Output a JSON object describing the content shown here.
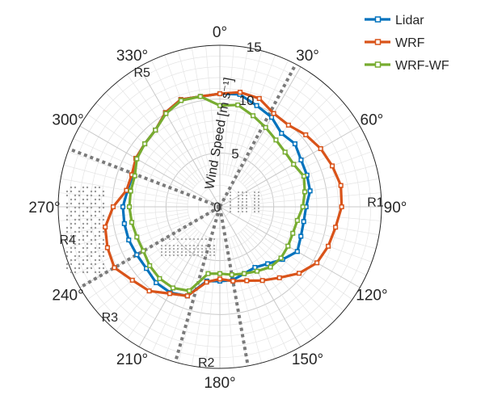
{
  "chart_data": {
    "type": "polar-line",
    "r_axis": {
      "label": "Wind Speed [m s⁻¹]",
      "ticks": [
        "0",
        "5",
        "10",
        "15"
      ],
      "tick_values": [
        0,
        5,
        10,
        15
      ],
      "rlim": [
        0,
        15
      ],
      "minor_step": 1
    },
    "theta_axis": {
      "direction": "clockwise",
      "zero_location": "top",
      "ticks": [
        "0°",
        "30°",
        "60°",
        "90°",
        "120°",
        "150°",
        "180°",
        "210°",
        "240°",
        "270°",
        "300°",
        "330°"
      ],
      "tick_values": [
        0,
        30,
        60,
        90,
        120,
        150,
        180,
        210,
        240,
        270,
        300,
        330
      ]
    },
    "grid": true,
    "legend_position": "top-right",
    "regions": [
      {
        "label": "R1",
        "angle": 88,
        "r": 16.6
      },
      {
        "label": "R2",
        "angle": 185,
        "r": 16.6
      },
      {
        "label": "R3",
        "angle": 225,
        "r": 16.6
      },
      {
        "label": "R4",
        "angle": 258,
        "r": 16.6
      },
      {
        "label": "R5",
        "angle": 330,
        "r": 16.6
      }
    ],
    "sector_boundaries_deg": [
      28,
      170,
      196,
      240,
      291
    ],
    "theta": [
      0,
      10,
      20,
      30,
      40,
      50,
      60,
      70,
      80,
      90,
      100,
      110,
      120,
      130,
      140,
      150,
      160,
      170,
      180,
      190,
      200,
      210,
      220,
      230,
      240,
      250,
      260,
      270,
      280,
      290,
      300,
      310,
      320,
      330,
      340,
      350
    ],
    "series": [
      {
        "name": "Lidar",
        "color": "#0072BD",
        "r": [
          10.5,
          10.6,
          10.0,
          9.6,
          8.9,
          9.1,
          8.7,
          8.6,
          8.5,
          8.0,
          7.9,
          8.0,
          8.3,
          7.6,
          6.9,
          6.5,
          6.6,
          6.9,
          6.9,
          7.0,
          8.8,
          9.2,
          9.2,
          8.9,
          8.9,
          9.0,
          9.0,
          9.0,
          8.7,
          8.6,
          9.0,
          9.1,
          9.3,
          10.1,
          10.6,
          10.4
        ],
        "marker": "square"
      },
      {
        "name": "WRF",
        "color": "#D95319",
        "r": [
          10.5,
          10.8,
          10.7,
          10.0,
          9.9,
          10.4,
          10.8,
          11.1,
          11.4,
          11.3,
          10.9,
          10.7,
          10.4,
          9.6,
          8.6,
          7.9,
          7.3,
          7.0,
          6.7,
          7.1,
          8.8,
          9.3,
          10.2,
          10.6,
          11.3,
          11.1,
          10.8,
          9.9,
          8.8,
          8.7,
          9.0,
          9.1,
          9.3,
          10.1,
          10.6,
          10.4
        ],
        "marker": "square"
      },
      {
        "name": "WRF-WF",
        "color": "#77AC30",
        "r": [
          9.4,
          9.6,
          9.0,
          8.5,
          8.1,
          7.9,
          7.9,
          8.3,
          8.0,
          7.7,
          7.3,
          7.2,
          7.3,
          7.4,
          7.3,
          6.9,
          6.6,
          6.4,
          6.2,
          6.3,
          8.3,
          8.7,
          8.7,
          8.5,
          8.2,
          8.2,
          8.3,
          8.4,
          8.4,
          8.4,
          8.9,
          9.1,
          9.3,
          10.0,
          10.5,
          10.4
        ],
        "marker": "square"
      }
    ]
  }
}
